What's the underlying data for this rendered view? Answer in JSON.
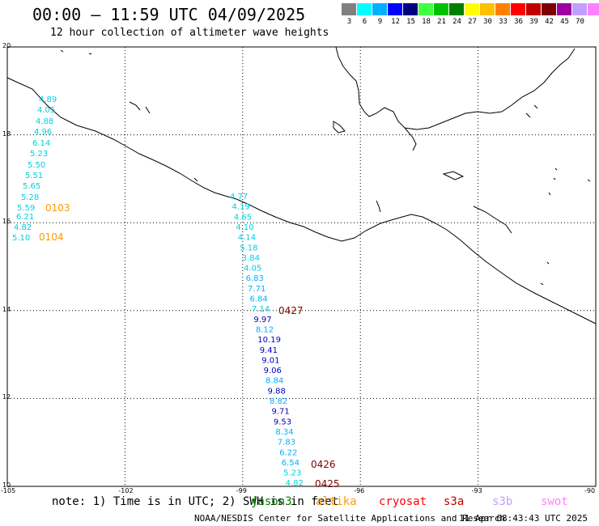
{
  "header": {
    "title": "00:00 – 11:59 UTC 04/09/2025",
    "subtitle": "12 hour collection of altimeter wave heights"
  },
  "color_scale": {
    "unit": "(ft)",
    "bins": [
      {
        "color": "#808080",
        "label": ""
      },
      {
        "color": "#00ffff",
        "label": "3"
      },
      {
        "color": "#00b0ff",
        "label": "6"
      },
      {
        "color": "#0000ff",
        "label": "9"
      },
      {
        "color": "#000080",
        "label": "12"
      },
      {
        "color": "#40ff40",
        "label": "15"
      },
      {
        "color": "#00c000",
        "label": "18"
      },
      {
        "color": "#008000",
        "label": "21"
      },
      {
        "color": "#ffff00",
        "label": "24"
      },
      {
        "color": "#ffc000",
        "label": "27"
      },
      {
        "color": "#ff8000",
        "label": "30"
      },
      {
        "color": "#ff0000",
        "label": "33"
      },
      {
        "color": "#c00000",
        "label": "36"
      },
      {
        "color": "#800000",
        "label": "39"
      },
      {
        "color": "#a000a0",
        "label": "42"
      },
      {
        "color": "#c0a0ff",
        "label": "45"
      },
      {
        "color": "#ff80ff",
        "label": "70"
      },
      {
        "color": "#000000",
        "label": ""
      }
    ]
  },
  "map": {
    "lon_range": [
      -105,
      -90
    ],
    "lat_range": [
      10,
      20
    ],
    "lat_labels": [
      "20",
      "18",
      "16",
      "14",
      "12",
      "10"
    ],
    "lon_labels": [
      "-105",
      "-102",
      "-99",
      "-96",
      "-93",
      "-90"
    ],
    "passes": [
      {
        "label": "0103",
        "color": "#ff9900"
      },
      {
        "label": "0104",
        "color": "#ff9900"
      },
      {
        "label": "0427",
        "color": "#800000"
      },
      {
        "label": "0426",
        "color": "#800000"
      },
      {
        "label": "0425",
        "color": "#800000"
      }
    ],
    "track_a": [
      "4.89",
      "4.05",
      "4.88",
      "4.96",
      "6.14",
      "5.23",
      "5.50",
      "5.51",
      "5.65",
      "5.28",
      "5.59",
      "6.21",
      "4.82",
      "5.10"
    ],
    "track_b": [
      {
        "v": "4.77",
        "c": "#00d0e0"
      },
      {
        "v": "4.19",
        "c": "#00d0e0"
      },
      {
        "v": "4.65",
        "c": "#00d0e0"
      },
      {
        "v": "4.10",
        "c": "#00d0e0"
      },
      {
        "v": "4.14",
        "c": "#00d0e0"
      },
      {
        "v": "5.18",
        "c": "#00d0e0"
      },
      {
        "v": "3.84",
        "c": "#00d0e0"
      },
      {
        "v": "4.05",
        "c": "#00d0e0"
      },
      {
        "v": "6.83",
        "c": "#00b0ff"
      },
      {
        "v": "7.71",
        "c": "#00b0ff"
      },
      {
        "v": "6.84",
        "c": "#00b0ff"
      },
      {
        "v": "7.14",
        "c": "#00d0e0"
      },
      {
        "v": "9.97",
        "c": "#0000c0"
      },
      {
        "v": "8.12",
        "c": "#00b0ff"
      },
      {
        "v": "10.19",
        "c": "#0000c0"
      },
      {
        "v": "9.41",
        "c": "#0000c0"
      },
      {
        "v": "9.01",
        "c": "#0000c0"
      },
      {
        "v": "9.06",
        "c": "#0000c0"
      },
      {
        "v": "8.84",
        "c": "#00b0ff"
      },
      {
        "v": "9.88",
        "c": "#0000c0"
      },
      {
        "v": "8.82",
        "c": "#00b0ff"
      },
      {
        "v": "9.71",
        "c": "#0000c0"
      },
      {
        "v": "9.53",
        "c": "#0000c0"
      },
      {
        "v": "8.34",
        "c": "#00b0ff"
      },
      {
        "v": "7.83",
        "c": "#00b0ff"
      },
      {
        "v": "6.22",
        "c": "#00b0ff"
      },
      {
        "v": "6.54",
        "c": "#00b0ff"
      },
      {
        "v": "5.23",
        "c": "#00d0e0"
      },
      {
        "v": "4.82",
        "c": "#00d0e0"
      }
    ]
  },
  "footer": {
    "note": "note: 1) Time is in UTC; 2) SWH is in feet",
    "satellites": [
      {
        "name": "jason3",
        "color": "#008000"
      },
      {
        "name": "altika",
        "color": "#ff9900"
      },
      {
        "name": "cryosat",
        "color": "#ff0000"
      },
      {
        "name": "s3a",
        "color": "#c00000"
      },
      {
        "name": "s3b",
        "color": "#c0a0ff"
      },
      {
        "name": "swot",
        "color": "#ff80ff"
      }
    ],
    "credit": "NOAA/NESDIS Center for Satellite Applications and Research",
    "timestamp": "11 Apr 08:43:43 UTC 2025"
  }
}
